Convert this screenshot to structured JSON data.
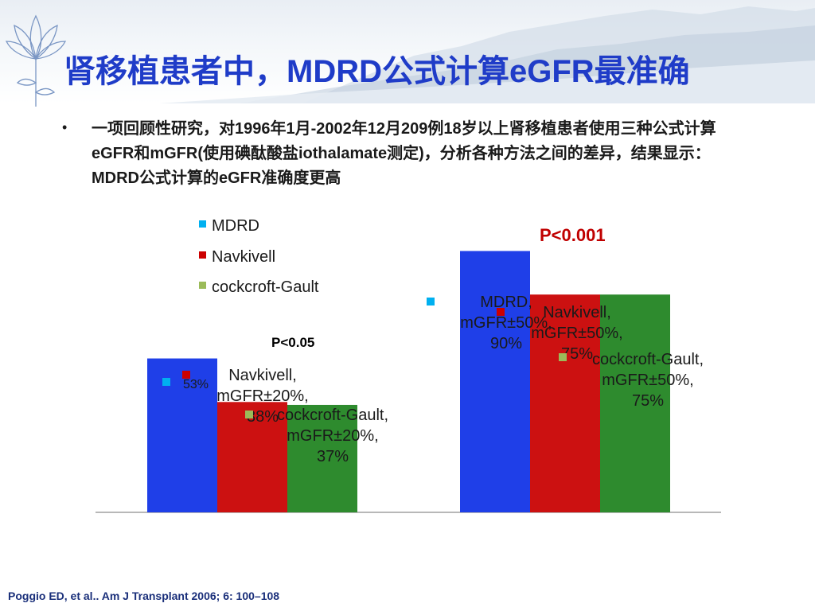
{
  "slide": {
    "title": "肾移植患者中，MDRD公式计算eGFR最准确",
    "bullet_marker": "•",
    "bullet": "一项回顾性研究，对1996年1月-2002年12月209例18岁以上肾移植患者使用三种公式计算eGFR和mGFR(使用碘酞酸盐iothalamate测定)，分析各种方法之间的差异，结果显示：MDRD公式计算的eGFR准确度更高",
    "footnote": "Poggio ED, et al.. Am J Transplant 2006; 6: 100–108"
  },
  "chart_data": {
    "type": "bar",
    "legend_position": "top-center",
    "ylim": [
      0,
      100
    ],
    "grid": false,
    "colors": {
      "MDRD": "#1f3fe8",
      "Navkivell": "#cc1111",
      "cockcroft-Gault": "#2e8b2e"
    },
    "legend_colors": {
      "MDRD": "#00b0f0",
      "Navkivell": "#cc0000",
      "cockcroft-Gault": "#9bbb59"
    },
    "legend": [
      "MDRD",
      "Navkivell",
      "cockcroft-Gault"
    ],
    "groups": [
      {
        "p_label": "P<0.05",
        "bars": [
          {
            "series": "MDRD",
            "value": 53,
            "label": [
              "53%"
            ]
          },
          {
            "series": "Navkivell",
            "value": 38,
            "label": [
              "Navkivell,",
              "mGFR±20%,",
              "38%"
            ]
          },
          {
            "series": "cockcroft-Gault",
            "value": 37,
            "label": [
              "cockcroft-Gault,",
              "mGFR±20%,",
              "37%"
            ]
          }
        ]
      },
      {
        "p_label": "P<0.001",
        "bars": [
          {
            "series": "MDRD",
            "value": 90,
            "label": [
              "MDRD,",
              "mGFR±50%,",
              "90%"
            ]
          },
          {
            "series": "Navkivell",
            "value": 75,
            "label": [
              "Navkivell,",
              "mGFR±50%,",
              "75%"
            ]
          },
          {
            "series": "cockcroft-Gault",
            "value": 75,
            "label": [
              "cockcroft-Gault,",
              "mGFR±50%,",
              "75%"
            ]
          }
        ]
      }
    ]
  }
}
